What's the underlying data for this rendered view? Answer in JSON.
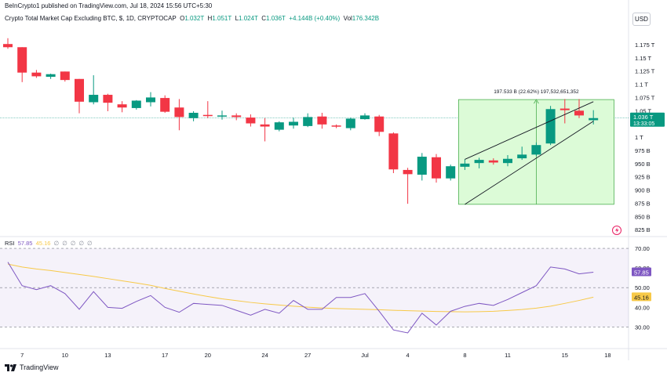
{
  "header": {
    "published": "BeInCrypto1 published on TradingView.com, Jul 18, 2024 15:56 UTC+5:30",
    "symbol": "Crypto Total Market Cap Excluding BTC, $, 1D, CRYPTOCAP",
    "o_label": "O",
    "o_val": "1.032T",
    "h_label": "H",
    "h_val": "1.051T",
    "l_label": "L",
    "l_val": "1.024T",
    "c_label": "C",
    "c_val": "1.036T",
    "change": "+4.144B (+0.40%)",
    "vol_label": "Vol",
    "vol_val": "176.342B",
    "currency_button": "USD"
  },
  "footer": {
    "brand": "TradingView"
  },
  "colors": {
    "up": "#089981",
    "down": "#f23645",
    "rsi": "#7e57c2",
    "rsi_ma": "#f7c948",
    "range_fill": "#dcfbd7",
    "range_stroke": "#4caf50"
  },
  "rsi_panel": {
    "label": "RSI",
    "value": "57.85",
    "ma_value": "45.16",
    "settings": "∅ ∅ ∅ ∅ ∅"
  },
  "chart_data": {
    "type": "candlestick",
    "y_axis": {
      "range": [
        0.815,
        1.2
      ],
      "ticks": [
        {
          "v": 1.175,
          "label": "1.175 T"
        },
        {
          "v": 1.15,
          "label": "1.15 T"
        },
        {
          "v": 1.125,
          "label": "1.125 T"
        },
        {
          "v": 1.1,
          "label": "1.1 T"
        },
        {
          "v": 1.075,
          "label": "1.075 T"
        },
        {
          "v": 1.05,
          "label": "1.05 T"
        },
        {
          "v": 1.0,
          "label": "1 T"
        },
        {
          "v": 0.975,
          "label": "975 B"
        },
        {
          "v": 0.95,
          "label": "950 B"
        },
        {
          "v": 0.925,
          "label": "925 B"
        },
        {
          "v": 0.9,
          "label": "900 B"
        },
        {
          "v": 0.875,
          "label": "875 B"
        },
        {
          "v": 0.85,
          "label": "850 B"
        },
        {
          "v": 0.825,
          "label": "825 B"
        }
      ]
    },
    "x_axis": {
      "labels": [
        {
          "i": 1,
          "label": "7"
        },
        {
          "i": 4,
          "label": "10"
        },
        {
          "i": 7,
          "label": "13"
        },
        {
          "i": 11,
          "label": "17"
        },
        {
          "i": 14,
          "label": "20"
        },
        {
          "i": 18,
          "label": "24"
        },
        {
          "i": 21,
          "label": "27"
        },
        {
          "i": 25,
          "label": "Jul"
        },
        {
          "i": 28,
          "label": "4"
        },
        {
          "i": 32,
          "label": "8"
        },
        {
          "i": 35,
          "label": "11"
        },
        {
          "i": 39,
          "label": "15"
        },
        {
          "i": 42,
          "label": "18"
        }
      ]
    },
    "candles": [
      {
        "o": 1.176,
        "h": 1.187,
        "l": 1.167,
        "c": 1.17
      },
      {
        "o": 1.17,
        "h": 1.17,
        "l": 1.104,
        "c": 1.122
      },
      {
        "o": 1.122,
        "h": 1.127,
        "l": 1.112,
        "c": 1.115
      },
      {
        "o": 1.114,
        "h": 1.12,
        "l": 1.11,
        "c": 1.119
      },
      {
        "o": 1.124,
        "h": 1.124,
        "l": 1.105,
        "c": 1.108
      },
      {
        "o": 1.11,
        "h": 1.11,
        "l": 1.045,
        "c": 1.067
      },
      {
        "o": 1.066,
        "h": 1.117,
        "l": 1.062,
        "c": 1.08
      },
      {
        "o": 1.08,
        "h": 1.082,
        "l": 1.049,
        "c": 1.065
      },
      {
        "o": 1.062,
        "h": 1.068,
        "l": 1.047,
        "c": 1.056
      },
      {
        "o": 1.055,
        "h": 1.07,
        "l": 1.052,
        "c": 1.069
      },
      {
        "o": 1.066,
        "h": 1.085,
        "l": 1.058,
        "c": 1.075
      },
      {
        "o": 1.074,
        "h": 1.079,
        "l": 1.046,
        "c": 1.048
      },
      {
        "o": 1.056,
        "h": 1.072,
        "l": 1.013,
        "c": 1.038
      },
      {
        "o": 1.036,
        "h": 1.049,
        "l": 1.03,
        "c": 1.046
      },
      {
        "o": 1.042,
        "h": 1.068,
        "l": 1.036,
        "c": 1.041
      },
      {
        "o": 1.041,
        "h": 1.05,
        "l": 1.033,
        "c": 1.041
      },
      {
        "o": 1.041,
        "h": 1.045,
        "l": 1.032,
        "c": 1.038
      },
      {
        "o": 1.037,
        "h": 1.043,
        "l": 1.02,
        "c": 1.026
      },
      {
        "o": 1.024,
        "h": 1.036,
        "l": 0.992,
        "c": 1.02
      },
      {
        "o": 1.014,
        "h": 1.03,
        "l": 1.011,
        "c": 1.028
      },
      {
        "o": 1.022,
        "h": 1.037,
        "l": 1.016,
        "c": 1.029
      },
      {
        "o": 1.021,
        "h": 1.045,
        "l": 1.019,
        "c": 1.038
      },
      {
        "o": 1.039,
        "h": 1.046,
        "l": 1.016,
        "c": 1.024
      },
      {
        "o": 1.022,
        "h": 1.024,
        "l": 1.017,
        "c": 1.021
      },
      {
        "o": 1.017,
        "h": 1.037,
        "l": 1.013,
        "c": 1.035
      },
      {
        "o": 1.034,
        "h": 1.045,
        "l": 1.033,
        "c": 1.041
      },
      {
        "o": 1.039,
        "h": 1.042,
        "l": 1.002,
        "c": 1.01
      },
      {
        "o": 1.007,
        "h": 1.009,
        "l": 0.932,
        "c": 0.939
      },
      {
        "o": 0.938,
        "h": 0.942,
        "l": 0.874,
        "c": 0.93
      },
      {
        "o": 0.929,
        "h": 0.97,
        "l": 0.918,
        "c": 0.963
      },
      {
        "o": 0.962,
        "h": 0.968,
        "l": 0.914,
        "c": 0.922
      },
      {
        "o": 0.922,
        "h": 0.948,
        "l": 0.918,
        "c": 0.945
      },
      {
        "o": 0.944,
        "h": 0.958,
        "l": 0.938,
        "c": 0.95
      },
      {
        "o": 0.951,
        "h": 0.961,
        "l": 0.941,
        "c": 0.957
      },
      {
        "o": 0.956,
        "h": 0.96,
        "l": 0.948,
        "c": 0.952
      },
      {
        "o": 0.951,
        "h": 0.966,
        "l": 0.945,
        "c": 0.959
      },
      {
        "o": 0.96,
        "h": 0.982,
        "l": 0.957,
        "c": 0.967
      },
      {
        "o": 0.967,
        "h": 0.99,
        "l": 0.964,
        "c": 0.985
      },
      {
        "o": 0.988,
        "h": 1.059,
        "l": 0.985,
        "c": 1.053
      },
      {
        "o": 1.054,
        "h": 1.072,
        "l": 1.026,
        "c": 1.051
      },
      {
        "o": 1.05,
        "h": 1.072,
        "l": 1.036,
        "c": 1.041
      },
      {
        "o": 1.032,
        "h": 1.051,
        "l": 1.024,
        "c": 1.036
      }
    ],
    "price_line": {
      "value": 1.036,
      "label": "1.036 T",
      "countdown": "13:33:05"
    },
    "measure_box": {
      "from_i": 32,
      "to_i": 42,
      "low": 0.873,
      "high": 1.071,
      "label": "197.533 B (22.62%) 197,532,651,352"
    },
    "channel": {
      "upper": [
        {
          "i": 32,
          "v": 0.958
        },
        {
          "i": 41,
          "v": 1.067
        }
      ],
      "lower": [
        {
          "i": 32,
          "v": 0.873
        },
        {
          "i": 41,
          "v": 1.03
        }
      ]
    },
    "rsi": {
      "y_range": [
        25,
        72
      ],
      "ticks": [
        {
          "v": 70,
          "label": "70.00"
        },
        {
          "v": 60,
          "label": "60.00"
        },
        {
          "v": 50,
          "label": "50.00"
        },
        {
          "v": 40,
          "label": "40.00"
        },
        {
          "v": 30,
          "label": "30.00"
        }
      ],
      "bands": [
        70,
        50,
        30
      ],
      "values": [
        63,
        51,
        49,
        51,
        47,
        39,
        48,
        40,
        39.5,
        43,
        46,
        40,
        37.5,
        42,
        41.5,
        41,
        38.5,
        36,
        39,
        37,
        43.5,
        39,
        39,
        45,
        45,
        47,
        38,
        28.5,
        27,
        37,
        31,
        38,
        40.5,
        42,
        41,
        44,
        47.5,
        51,
        60.5,
        59.5,
        57,
        57.85
      ],
      "ma_values": [
        62,
        60.5,
        59.5,
        58.7,
        57.7,
        56.7,
        55.7,
        54.6,
        53.5,
        52.4,
        51.2,
        49.6,
        48.2,
        46.8,
        45.5,
        44.3,
        43.4,
        42.5,
        41.8,
        41.2,
        40.6,
        40.1,
        39.7,
        39.4,
        39.2,
        39.0,
        38.8,
        38.5,
        38.3,
        38.1,
        37.9,
        37.8,
        37.7,
        37.8,
        38.0,
        38.4,
        38.9,
        39.6,
        40.6,
        42.0,
        43.5,
        45.16
      ]
    }
  }
}
